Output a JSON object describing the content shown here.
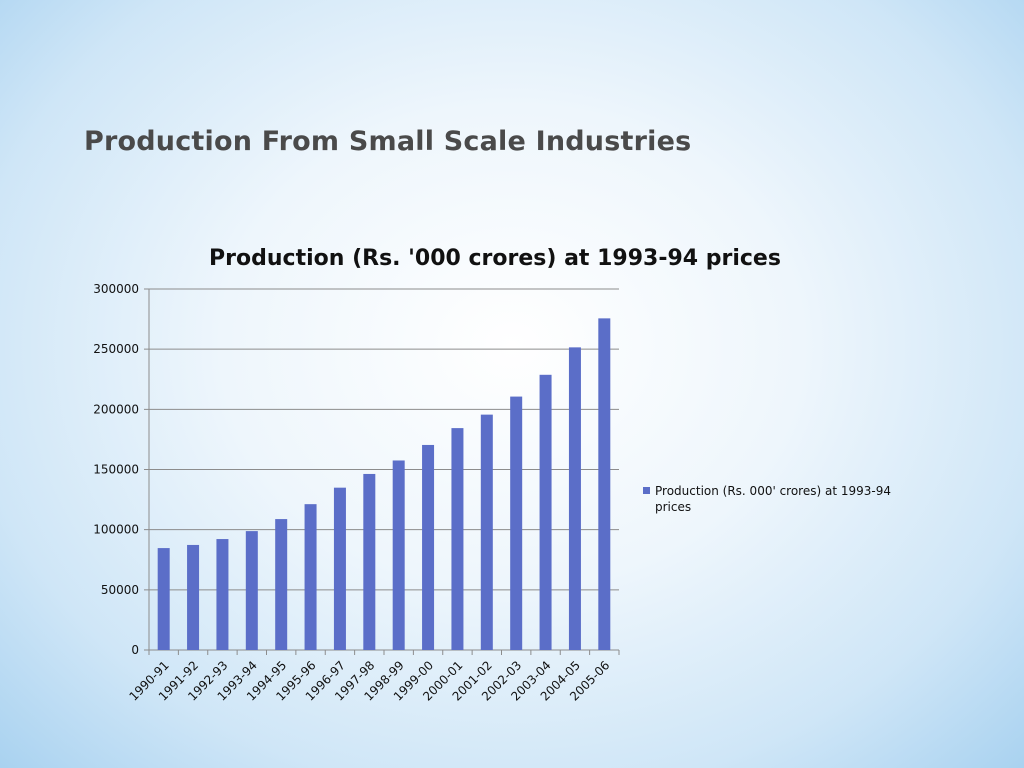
{
  "slide": {
    "title": "Production From Small Scale Industries"
  },
  "colors": {
    "bar": "#5b6ec8",
    "gridline": "#8c8c8c",
    "axis": "#8c8c8c",
    "title_text": "#4a4a4a"
  },
  "chart_data": {
    "type": "bar",
    "title": "Production (Rs. '000 crores) at 1993-94 prices",
    "xlabel": "",
    "ylabel": "",
    "ylim": [
      0,
      300000
    ],
    "yticks": [
      "0",
      "50000",
      "100000",
      "150000",
      "200000",
      "250000",
      "300000"
    ],
    "grid": true,
    "legend_position": "right",
    "categories": [
      "1990-91",
      "1991-92",
      "1992-93",
      "1993-94",
      "1994-95",
      "1995-96",
      "1996-97",
      "1997-98",
      "1998-99",
      "1999-00",
      "2000-01",
      "2001-02",
      "2002-03",
      "2003-04",
      "2004-05",
      "2005-06"
    ],
    "series": [
      {
        "name": "Production (Rs. 000' crores) at 1993-94 prices",
        "legend_lines": [
          "Production (Rs. 000' crores) at 1993-94",
          "prices"
        ],
        "values": [
          84700,
          87300,
          92200,
          98800,
          108800,
          121200,
          134900,
          146300,
          157500,
          170400,
          184400,
          195600,
          210600,
          228700,
          251500,
          275600
        ]
      }
    ]
  }
}
